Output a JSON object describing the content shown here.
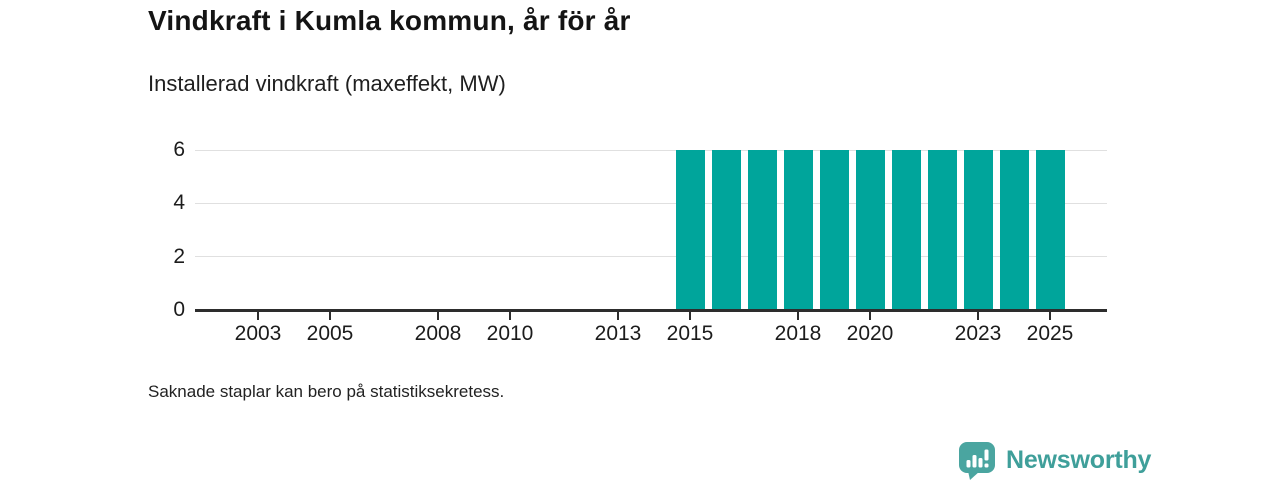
{
  "chart_data": {
    "type": "bar",
    "title": "Vindkraft i Kumla kommun, år för år",
    "subtitle": "Installerad vindkraft (maxeffekt, MW)",
    "xlabel": "",
    "ylabel": "Installerad vindkraft (maxeffekt, MW)",
    "categories": [
      2002,
      2003,
      2004,
      2005,
      2006,
      2007,
      2008,
      2009,
      2010,
      2011,
      2012,
      2013,
      2014,
      2015,
      2016,
      2017,
      2018,
      2019,
      2020,
      2021,
      2022,
      2023,
      2024,
      2025
    ],
    "values": [
      null,
      null,
      null,
      null,
      null,
      null,
      null,
      null,
      null,
      null,
      null,
      null,
      null,
      6,
      6,
      6,
      6,
      6,
      6,
      6,
      6,
      6,
      6,
      6
    ],
    "ylim": [
      0,
      6
    ],
    "y_ticks": [
      0,
      2,
      4,
      6
    ],
    "x_tick_labels": [
      "2003",
      "2005",
      "2008",
      "2010",
      "2013",
      "2015",
      "2018",
      "2020",
      "2023",
      "2025"
    ],
    "bar_color": "#00a59b",
    "grid": "horizontal",
    "legend": "none"
  },
  "footnote": "Saknade staplar kan bero på statistiksekretess.",
  "logo": {
    "brand": "Newsworthy",
    "icon": "bar-chart-speech-bubble-icon",
    "brand_color": "#3f9f9a",
    "icon_color": "#4aa5a0"
  }
}
